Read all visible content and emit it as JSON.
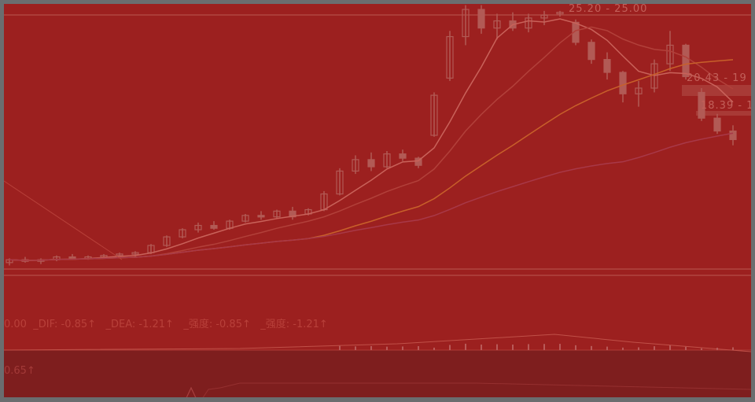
{
  "colors": {
    "background": "#9c201f",
    "candle": "#b25a55",
    "ma5": "#c9625a",
    "ma10": "#b2403a",
    "ma20": "#c8602a",
    "ma60": "#a83848",
    "frame": "#6a6d6f"
  },
  "macd_legend": {
    "prefix": "0.00",
    "dif": "_DIF: -0.85↑",
    "dea": "_DEA: -1.21↑",
    "strength1": "_强度: -0.85↑",
    "strength2": "_强度: -1.21↑"
  },
  "lower_pane": {
    "value": "0.65↑"
  },
  "chart_data": {
    "type": "candlestick",
    "price_labels": [
      {
        "text": "25.20 - 25.00",
        "price": 25.2
      },
      {
        "text": "20.43 - 19",
        "price": 20.43
      },
      {
        "text": "18.39 - 1",
        "price": 18.39
      }
    ],
    "ohlc": [
      [
        7.6,
        7.9,
        7.4,
        7.8
      ],
      [
        7.8,
        8.0,
        7.6,
        7.7
      ],
      [
        7.7,
        7.9,
        7.5,
        7.8
      ],
      [
        7.8,
        8.1,
        7.7,
        8.0
      ],
      [
        8.0,
        8.2,
        7.8,
        7.9
      ],
      [
        7.9,
        8.1,
        7.8,
        8.0
      ],
      [
        8.0,
        8.2,
        7.9,
        8.1
      ],
      [
        8.1,
        8.3,
        8.0,
        8.2
      ],
      [
        8.2,
        8.4,
        8.0,
        8.3
      ],
      [
        8.3,
        8.9,
        8.2,
        8.8
      ],
      [
        8.8,
        9.5,
        8.7,
        9.4
      ],
      [
        9.4,
        10.0,
        9.3,
        9.9
      ],
      [
        9.9,
        10.4,
        9.7,
        10.2
      ],
      [
        10.2,
        10.5,
        9.9,
        10.0
      ],
      [
        10.0,
        10.6,
        9.9,
        10.5
      ],
      [
        10.5,
        11.0,
        10.4,
        10.9
      ],
      [
        10.9,
        11.2,
        10.6,
        10.8
      ],
      [
        10.8,
        11.3,
        10.7,
        11.2
      ],
      [
        11.2,
        11.5,
        10.6,
        10.8
      ],
      [
        11.0,
        11.4,
        10.9,
        11.3
      ],
      [
        11.3,
        12.6,
        11.2,
        12.4
      ],
      [
        12.4,
        14.2,
        12.3,
        14.0
      ],
      [
        14.0,
        15.1,
        13.8,
        14.8
      ],
      [
        14.8,
        15.3,
        14.0,
        14.3
      ],
      [
        14.3,
        15.4,
        14.2,
        15.2
      ],
      [
        15.2,
        15.5,
        14.7,
        14.9
      ],
      [
        14.9,
        15.0,
        14.2,
        14.4
      ],
      [
        16.5,
        19.5,
        16.4,
        19.3
      ],
      [
        20.5,
        23.8,
        20.3,
        23.4
      ],
      [
        23.4,
        25.6,
        22.8,
        25.3
      ],
      [
        25.3,
        25.6,
        23.6,
        24.0
      ],
      [
        24.0,
        25.0,
        23.2,
        24.5
      ],
      [
        24.5,
        25.1,
        23.8,
        24.0
      ],
      [
        24.0,
        25.0,
        23.7,
        24.7
      ],
      [
        24.7,
        25.2,
        24.2,
        24.9
      ],
      [
        25.0,
        25.2,
        24.8,
        25.1
      ],
      [
        24.4,
        24.6,
        22.8,
        23.0
      ],
      [
        23.0,
        23.2,
        21.5,
        21.8
      ],
      [
        21.8,
        22.3,
        20.4,
        20.9
      ],
      [
        20.9,
        21.0,
        18.8,
        19.4
      ],
      [
        19.4,
        20.3,
        18.5,
        19.8
      ],
      [
        19.8,
        21.8,
        19.5,
        21.5
      ],
      [
        21.5,
        23.8,
        21.0,
        22.8
      ],
      [
        22.8,
        22.9,
        20.4,
        20.6
      ],
      [
        19.5,
        19.8,
        17.5,
        17.7
      ],
      [
        17.7,
        18.0,
        16.6,
        16.8
      ],
      [
        16.8,
        17.2,
        15.8,
        16.2
      ]
    ],
    "moving_averages": [
      5,
      10,
      20,
      40
    ]
  }
}
